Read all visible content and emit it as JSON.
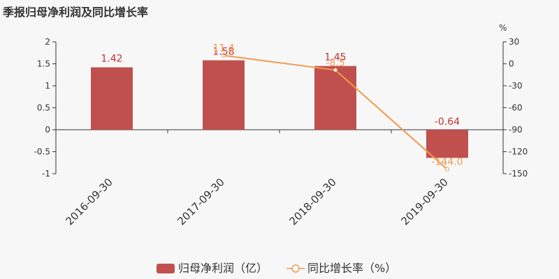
{
  "chart_data": {
    "type": "bar",
    "title": "季报归母净利润及同比增长率",
    "categories": [
      "2016-09-30",
      "2017-09-30",
      "2018-09-30",
      "2019-09-30"
    ],
    "y_left": {
      "ticks": [
        "2",
        "1.5",
        "1",
        "0.5",
        "0",
        "-0.5",
        "-1"
      ],
      "ylim": [
        -1,
        2
      ]
    },
    "y_right": {
      "unit": "%",
      "ticks": [
        "30",
        "0",
        "-30",
        "-60",
        "-90",
        "-120",
        "-150"
      ],
      "ylim": [
        -150,
        30
      ]
    },
    "series": [
      {
        "name": "归母净利润（亿）",
        "type": "bar",
        "axis": "left",
        "color": "#c0504d",
        "values": [
          1.42,
          1.58,
          1.45,
          -0.64
        ],
        "labels": [
          "1.42",
          "1.58",
          "1.45",
          "-0.64"
        ]
      },
      {
        "name": "同比增长率（%）",
        "type": "line",
        "axis": "right",
        "color": "#f5994e",
        "values": [
          null,
          11.4,
          -8.5,
          -144.0
        ],
        "labels": [
          "",
          "11.4",
          "-8.5",
          "-144.0"
        ]
      }
    ],
    "legend": "bottom",
    "grid": false
  }
}
